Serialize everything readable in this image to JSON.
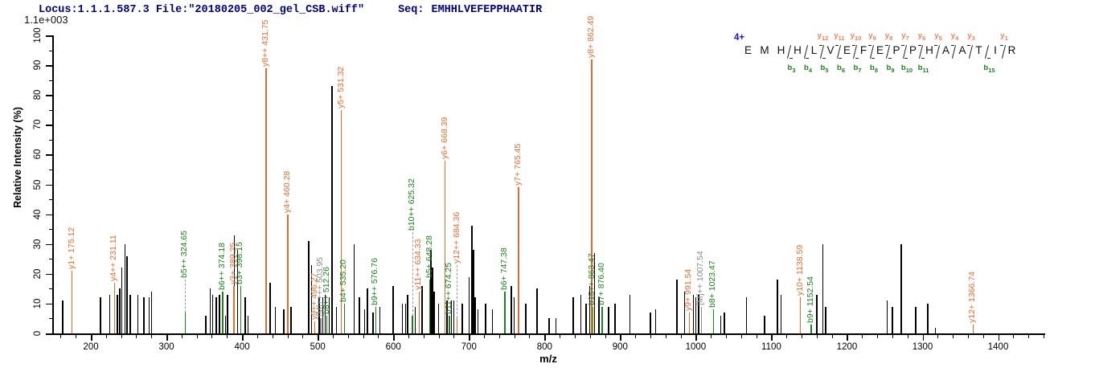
{
  "title": {
    "locus": "Locus:1.1.1.587.3 File:\"20180205_002_gel_CSB.wiff\"",
    "seq_label": "Seq:",
    "sequence": "EMHHLVEFEPPHAATIR"
  },
  "axes": {
    "y_label": "Relative Intensity (%)",
    "x_label": "m/z",
    "top_intensity_label": "1.1e+003",
    "x_major_ticks": [
      200,
      300,
      400,
      500,
      600,
      700,
      800,
      900,
      1000,
      1100,
      1200,
      1300,
      1400
    ],
    "x_minor_step": 20,
    "y_major_ticks": [
      0,
      10,
      20,
      30,
      40,
      50,
      60,
      70,
      80,
      90,
      100
    ],
    "y_minor_step": 5
  },
  "sequence_panel": {
    "charge": "4+",
    "residues": [
      "E",
      "M",
      "H",
      "H",
      "L",
      "V",
      "E",
      "F",
      "E",
      "P",
      "P",
      "H",
      "A",
      "A",
      "T",
      "I",
      "R"
    ],
    "boundaries": [
      {
        "after": 3,
        "b": "b3"
      },
      {
        "after": 4,
        "b": "b4"
      },
      {
        "after": 5,
        "b": "b5",
        "y": "y12"
      },
      {
        "after": 6,
        "b": "b6",
        "y": "y11"
      },
      {
        "after": 7,
        "b": "b7",
        "y": "y10"
      },
      {
        "after": 8,
        "b": "b8",
        "y": "y9"
      },
      {
        "after": 9,
        "b": "b9",
        "y": "y8"
      },
      {
        "after": 10,
        "b": "b10",
        "y": "y7"
      },
      {
        "after": 11,
        "b": "b11",
        "y": "y6"
      },
      {
        "after": 12,
        "y": "y5"
      },
      {
        "after": 13,
        "y": "y4"
      },
      {
        "after": 14,
        "y": "y3"
      },
      {
        "after": 15,
        "b": "b15"
      },
      {
        "after": 16,
        "y": "y1"
      }
    ]
  },
  "colors": {
    "y_ion": "#DF6E2E",
    "y_ion_light": "#EC8252",
    "b_ion": "#1E801E",
    "b_ion_overlap": "#8F8F00",
    "precursor": "#8A8A8A",
    "title": "#00008B",
    "charge": "#1515CC",
    "axis": "#000000"
  },
  "chart_data": {
    "type": "bar",
    "subtype": "ms2-peptide-fragment-spectrum",
    "title": "Locus:1.1.1.587.3 File:\"20180205_002_gel_CSB.wiff\" Seq: EMHHLVEFEPPHAATIR",
    "xlabel": "m/z",
    "ylabel": "Relative Intensity (%)",
    "xlim": [
      150,
      1460
    ],
    "ylim": [
      0,
      100
    ],
    "base_peak_intensity": "1.1e+003",
    "legend_position": "none",
    "grid": false,
    "labeled_peaks": [
      {
        "series": "y",
        "label": "y1+ 175.12",
        "mz": 175.12,
        "intensity": 21
      },
      {
        "series": "y",
        "label": "y4++ 231.11",
        "mz": 231.11,
        "intensity": 17
      },
      {
        "series": "b",
        "label": "b5++ 324.65",
        "mz": 324.65,
        "intensity": 7,
        "pointer": 18
      },
      {
        "series": "b",
        "label": "b6++ 374.18",
        "mz": 374.18,
        "intensity": 14
      },
      {
        "series": "y",
        "label": "y3+ 389.25",
        "mz": 389.25,
        "intensity": 16
      },
      {
        "series": "b",
        "label": "b3+ 398.15",
        "mz": 398.15,
        "intensity": 16
      },
      {
        "series": "y",
        "label": "y8++ 431.75",
        "mz": 431.75,
        "intensity": 89
      },
      {
        "series": "y",
        "label": "y4+ 460.28",
        "mz": 460.28,
        "intensity": 40
      },
      {
        "series": "y",
        "label": "y9++ 496.27",
        "mz": 496.27,
        "intensity": 4
      },
      {
        "series": "M",
        "label": "[M]++++ 503.95",
        "mz": 503.95,
        "intensity": 5
      },
      {
        "series": "b",
        "label": "b8++ 512.26",
        "mz": 512.26,
        "intensity": 6
      },
      {
        "series": "y",
        "label": "y5+ 531.32",
        "mz": 531.32,
        "intensity": 75
      },
      {
        "series": "b",
        "label": "b4+ 535.20",
        "mz": 535.2,
        "intensity": 10
      },
      {
        "series": "b",
        "label": "b9++ 576.76",
        "mz": 576.76,
        "intensity": 9
      },
      {
        "series": "b",
        "label": "b10++ 625.32",
        "mz": 625.32,
        "intensity": 6,
        "pointer": 34
      },
      {
        "series": "y",
        "label": "y11++ 634.33",
        "mz": 634.33,
        "intensity": 14
      },
      {
        "series": "b",
        "label": "b5+ 648.28",
        "mz": 648.28,
        "intensity": 18
      },
      {
        "series": "y",
        "label": "y6+ 668.39",
        "mz": 668.39,
        "intensity": 58
      },
      {
        "series": "b",
        "label": "b11++ 674.25",
        "mz": 674.25,
        "intensity": 6
      },
      {
        "series": "y",
        "label": "y12++ 684.36",
        "mz": 684.36,
        "intensity": 5,
        "pointer": 23
      },
      {
        "series": "b",
        "label": "b6+ 747.38",
        "mz": 747.38,
        "intensity": 14
      },
      {
        "series": "y",
        "label": "y7+ 765.45",
        "mz": 765.45,
        "intensity": 49
      },
      {
        "series": "y",
        "label": "y8+ 862.49",
        "mz": 862.49,
        "intensity": 92
      },
      {
        "series": "b",
        "label": "b15++ 863.47",
        "mz": 863.47,
        "intensity": 9,
        "peak_color": "b_ion_overlap"
      },
      {
        "series": "b",
        "label": "b7+ 876.40",
        "mz": 876.4,
        "intensity": 9
      },
      {
        "series": "y",
        "label": "y9+ 991.54",
        "mz": 991.54,
        "intensity": 7
      },
      {
        "series": "M",
        "label": "[M]++ 1007.54",
        "mz": 1007.54,
        "intensity": 9
      },
      {
        "series": "b",
        "label": "b8+ 1023.47",
        "mz": 1023.47,
        "intensity": 8
      },
      {
        "series": "y",
        "label": "y10+ 1138.59",
        "mz": 1138.59,
        "intensity": 12
      },
      {
        "series": "b",
        "label": "b9+ 1152.54",
        "mz": 1152.54,
        "intensity": 3
      },
      {
        "series": "y",
        "label": "y12+ 1366.74",
        "mz": 1366.74,
        "intensity": 3
      }
    ],
    "unlabeled_peaks": [
      [
        163,
        11
      ],
      [
        213,
        12
      ],
      [
        225,
        13
      ],
      [
        235,
        13
      ],
      [
        238,
        15
      ],
      [
        241,
        22
      ],
      [
        245,
        30
      ],
      [
        248,
        26
      ],
      [
        252,
        13
      ],
      [
        262,
        13
      ],
      [
        270,
        12
      ],
      [
        277,
        12
      ],
      [
        280,
        14
      ],
      [
        352,
        6
      ],
      [
        358,
        15
      ],
      [
        361,
        13
      ],
      [
        366,
        12
      ],
      [
        370,
        13
      ],
      [
        378,
        6
      ],
      [
        381,
        13
      ],
      [
        390,
        33
      ],
      [
        394,
        28
      ],
      [
        404,
        12
      ],
      [
        408,
        6
      ],
      [
        437,
        17
      ],
      [
        444,
        9
      ],
      [
        455,
        8
      ],
      [
        465,
        9
      ],
      [
        488,
        31
      ],
      [
        492,
        23
      ],
      [
        502,
        12
      ],
      [
        507,
        12
      ],
      [
        510,
        13
      ],
      [
        515,
        12
      ],
      [
        519,
        83
      ],
      [
        525,
        9
      ],
      [
        548,
        30
      ],
      [
        555,
        12
      ],
      [
        562,
        8
      ],
      [
        566,
        15
      ],
      [
        573,
        7
      ],
      [
        582,
        9
      ],
      [
        600,
        16
      ],
      [
        612,
        10
      ],
      [
        616,
        10
      ],
      [
        619,
        13
      ],
      [
        629,
        9
      ],
      [
        638,
        16
      ],
      [
        650,
        28
      ],
      [
        652,
        22
      ],
      [
        654,
        14
      ],
      [
        660,
        10
      ],
      [
        671,
        11
      ],
      [
        677,
        11
      ],
      [
        680,
        11
      ],
      [
        691,
        10
      ],
      [
        700,
        19
      ],
      [
        704,
        36
      ],
      [
        706,
        28
      ],
      [
        708,
        12
      ],
      [
        712,
        8
      ],
      [
        722,
        10
      ],
      [
        731,
        8
      ],
      [
        756,
        16
      ],
      [
        760,
        12
      ],
      [
        775,
        10
      ],
      [
        790,
        15
      ],
      [
        806,
        5
      ],
      [
        815,
        5
      ],
      [
        838,
        12
      ],
      [
        848,
        13
      ],
      [
        855,
        10
      ],
      [
        860,
        16
      ],
      [
        866,
        27
      ],
      [
        872,
        12
      ],
      [
        885,
        9
      ],
      [
        893,
        10
      ],
      [
        913,
        13
      ],
      [
        940,
        7
      ],
      [
        947,
        8
      ],
      [
        975,
        18
      ],
      [
        985,
        14
      ],
      [
        997,
        13
      ],
      [
        1000,
        12
      ],
      [
        1004,
        13
      ],
      [
        1033,
        6
      ],
      [
        1038,
        7
      ],
      [
        1067,
        12
      ],
      [
        1091,
        6
      ],
      [
        1108,
        18
      ],
      [
        1113,
        13
      ],
      [
        1160,
        13
      ],
      [
        1168,
        30
      ],
      [
        1172,
        9
      ],
      [
        1253,
        11
      ],
      [
        1260,
        9
      ],
      [
        1272,
        30
      ],
      [
        1291,
        9
      ],
      [
        1307,
        10
      ],
      [
        1317,
        2
      ]
    ]
  }
}
